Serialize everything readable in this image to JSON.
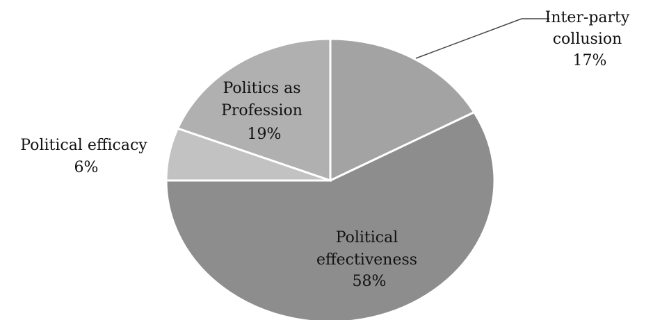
{
  "chart_data": {
    "type": "pie",
    "title": "",
    "slices": [
      {
        "label_lines": [
          "Inter-party",
          "collusion"
        ],
        "value": 17,
        "value_label": "17%",
        "color": "#a3a3a3"
      },
      {
        "label_lines": [
          "Political",
          "effectiveness"
        ],
        "value": 58,
        "value_label": "58%",
        "color": "#8d8d8d"
      },
      {
        "label_lines": [
          "Political efficacy"
        ],
        "value": 6,
        "value_label": "6%",
        "color": "#c2c2c2"
      },
      {
        "label_lines": [
          "Politics as",
          "Profession"
        ],
        "value": 19,
        "value_label": "19%",
        "color": "#b0b0b0"
      }
    ],
    "start_angle_deg": 0,
    "direction": "clockwise",
    "legend": "none"
  }
}
